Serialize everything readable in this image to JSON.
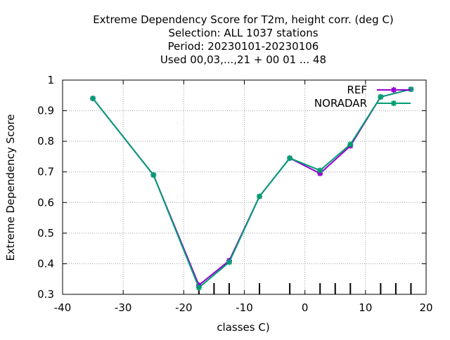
{
  "chart_data": {
    "type": "line",
    "title_lines": [
      "Extreme Dependency Score  for T2m, height corr. (deg C)",
      "Selection: ALL   1037 stations",
      "Period: 20230101-20230106",
      "Used  00,03,...,21  + 00 01 ... 48"
    ],
    "xlabel": "classes C)",
    "ylabel": "Extreme Dependency Score",
    "xlim": [
      -40,
      20
    ],
    "ylim": [
      0.3,
      1.0
    ],
    "x_ticks": [
      -40,
      -30,
      -20,
      -10,
      0,
      10,
      20
    ],
    "y_ticks": [
      0.3,
      0.4,
      0.5,
      0.6,
      0.7,
      0.8,
      0.9,
      1.0
    ],
    "x_tick_labels": [
      "-40",
      "-30",
      "-20",
      "-10",
      "0",
      "10",
      "20"
    ],
    "y_tick_labels": [
      "0.3",
      "0.4",
      "0.5",
      "0.6",
      "0.7",
      "0.8",
      "0.9",
      "1"
    ],
    "grid": true,
    "legend_position": "top-right",
    "class_marks": [
      -17.5,
      -15,
      -12.5,
      -7.5,
      -2.5,
      2.5,
      5,
      7.5,
      12.5,
      15,
      17.5
    ],
    "series": [
      {
        "name": "REF",
        "color": "#9400d3",
        "x": [
          -35,
          -25,
          -17.5,
          -12.5,
          -7.5,
          -2.5,
          2.5,
          7.5,
          12.5,
          17.5
        ],
        "values": [
          0.94,
          0.69,
          0.33,
          0.41,
          0.62,
          0.745,
          0.695,
          0.785,
          0.945,
          0.97
        ]
      },
      {
        "name": "NORADAR",
        "color": "#009e73",
        "x": [
          -35,
          -25,
          -17.5,
          -12.5,
          -7.5,
          -2.5,
          2.5,
          7.5,
          12.5,
          17.5
        ],
        "values": [
          0.94,
          0.69,
          0.322,
          0.405,
          0.62,
          0.745,
          0.705,
          0.79,
          0.945,
          0.97
        ]
      }
    ]
  }
}
